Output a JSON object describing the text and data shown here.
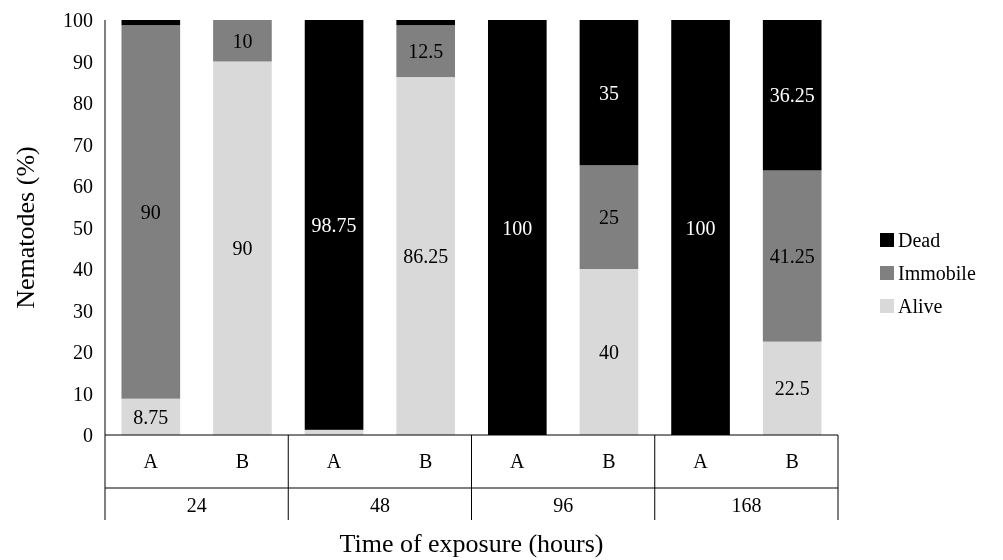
{
  "chart_data": {
    "type": "bar",
    "stacked": true,
    "xlabel": "Time of exposure (hours)",
    "ylabel": "Nematodes (%)",
    "categories": [
      "A",
      "B",
      "A",
      "B",
      "A",
      "B",
      "A",
      "B"
    ],
    "annotations": [
      "24",
      "48",
      "96",
      "168"
    ],
    "series": [
      {
        "name": "Alive",
        "color": "#d9d9d9",
        "values": [
          8.75,
          90,
          1.25,
          86.25,
          0,
          40,
          0,
          22.5
        ],
        "value_labels": [
          "8.75",
          "90",
          null,
          "86.25",
          null,
          "40",
          null,
          "22.5"
        ]
      },
      {
        "name": "Immobile",
        "color": "#808080",
        "values": [
          90,
          10,
          0,
          12.5,
          0,
          25,
          0,
          41.25
        ],
        "value_labels": [
          "90",
          "10",
          null,
          "12.5",
          null,
          "25",
          null,
          "41.25"
        ]
      },
      {
        "name": "Dead",
        "color": "#000000",
        "values": [
          1.25,
          0,
          98.75,
          1.25,
          100,
          35,
          100,
          36.25
        ],
        "value_labels": [
          null,
          null,
          "98.75",
          null,
          "100",
          "35",
          "100",
          "36.25"
        ]
      }
    ],
    "ylim": [
      0,
      100
    ],
    "yticks": [
      0,
      10,
      20,
      30,
      40,
      50,
      60,
      70,
      80,
      90,
      100
    ],
    "legend": "right",
    "grid": false
  }
}
